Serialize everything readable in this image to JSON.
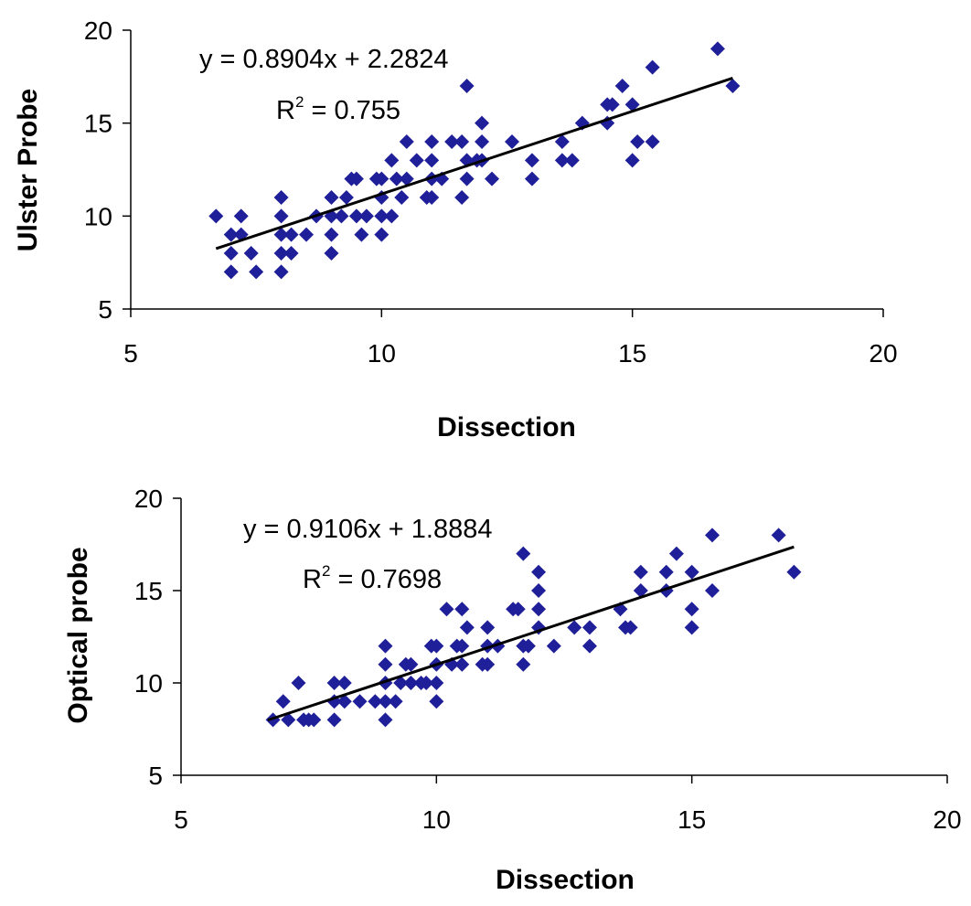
{
  "chart_data": [
    {
      "type": "scatter",
      "xlabel": "Dissection",
      "ylabel": "Ulster Probe",
      "xlim": [
        5,
        20
      ],
      "ylim": [
        5,
        20
      ],
      "xticks": [
        "5",
        "10",
        "15",
        "20"
      ],
      "yticks": [
        "5",
        "10",
        "15",
        "20"
      ],
      "marker": "diamond",
      "marker_color": "#1F1F99",
      "grid": false,
      "legend": "none",
      "trendline": {
        "slope": 0.8904,
        "intercept": 2.2824,
        "x_range": [
          6.7,
          17.0
        ],
        "equation": "y = 0.8904x + 2.2824",
        "r2_prefix": "R",
        "r2_sup": "2",
        "r2_value": " = 0.755"
      },
      "points": [
        [
          6.7,
          10
        ],
        [
          7.0,
          9
        ],
        [
          7.0,
          8
        ],
        [
          7.0,
          7
        ],
        [
          7.2,
          10
        ],
        [
          7.2,
          9
        ],
        [
          7.4,
          8
        ],
        [
          7.5,
          7
        ],
        [
          8.0,
          11
        ],
        [
          8.0,
          10
        ],
        [
          8.0,
          9
        ],
        [
          8.0,
          8
        ],
        [
          8.0,
          7
        ],
        [
          8.2,
          9
        ],
        [
          8.2,
          8
        ],
        [
          8.5,
          9
        ],
        [
          8.7,
          10
        ],
        [
          9.0,
          11
        ],
        [
          9.0,
          10
        ],
        [
          9.0,
          9
        ],
        [
          9.0,
          8
        ],
        [
          9.2,
          10
        ],
        [
          9.3,
          11
        ],
        [
          9.4,
          12
        ],
        [
          9.5,
          12
        ],
        [
          9.5,
          10
        ],
        [
          9.6,
          9
        ],
        [
          9.7,
          10
        ],
        [
          9.9,
          12
        ],
        [
          10.0,
          12
        ],
        [
          10.0,
          11
        ],
        [
          10.0,
          10
        ],
        [
          10.0,
          9
        ],
        [
          10.2,
          13
        ],
        [
          10.2,
          10
        ],
        [
          10.3,
          12
        ],
        [
          10.4,
          11
        ],
        [
          10.5,
          14
        ],
        [
          10.5,
          12
        ],
        [
          10.7,
          13
        ],
        [
          10.9,
          11
        ],
        [
          11.0,
          14
        ],
        [
          11.0,
          13
        ],
        [
          11.0,
          12
        ],
        [
          11.0,
          11
        ],
        [
          11.2,
          12
        ],
        [
          11.4,
          14
        ],
        [
          11.6,
          14
        ],
        [
          11.6,
          11
        ],
        [
          11.7,
          17
        ],
        [
          11.7,
          13
        ],
        [
          11.7,
          12
        ],
        [
          11.9,
          13
        ],
        [
          12.0,
          15
        ],
        [
          12.0,
          14
        ],
        [
          12.0,
          13
        ],
        [
          12.2,
          12
        ],
        [
          12.6,
          14
        ],
        [
          13.0,
          13
        ],
        [
          13.0,
          12
        ],
        [
          13.6,
          14
        ],
        [
          13.6,
          13
        ],
        [
          13.8,
          13
        ],
        [
          14.0,
          15
        ],
        [
          14.5,
          16
        ],
        [
          14.5,
          15
        ],
        [
          14.6,
          16
        ],
        [
          14.8,
          17
        ],
        [
          15.0,
          16
        ],
        [
          15.0,
          13
        ],
        [
          15.1,
          14
        ],
        [
          15.4,
          18
        ],
        [
          15.4,
          14
        ],
        [
          16.7,
          19
        ],
        [
          17.0,
          17
        ]
      ]
    },
    {
      "type": "scatter",
      "xlabel": "Dissection",
      "ylabel": "Optical probe",
      "xlim": [
        5,
        20
      ],
      "ylim": [
        5,
        20
      ],
      "xticks": [
        "5",
        "10",
        "15",
        "20"
      ],
      "yticks": [
        "5",
        "10",
        "15",
        "20"
      ],
      "marker": "diamond",
      "marker_color": "#1F1F99",
      "grid": false,
      "legend": "none",
      "trendline": {
        "slope": 0.9106,
        "intercept": 1.8884,
        "x_range": [
          6.7,
          17.0
        ],
        "equation": "y = 0.9106x + 1.8884",
        "r2_prefix": "R",
        "r2_sup": "2",
        "r2_value": " = 0.7698"
      },
      "points": [
        [
          6.8,
          8
        ],
        [
          7.0,
          9
        ],
        [
          7.1,
          8
        ],
        [
          7.3,
          10
        ],
        [
          7.4,
          8
        ],
        [
          7.5,
          8
        ],
        [
          7.6,
          8
        ],
        [
          8.0,
          10
        ],
        [
          8.0,
          9
        ],
        [
          8.0,
          8
        ],
        [
          8.2,
          10
        ],
        [
          8.2,
          9
        ],
        [
          8.5,
          9
        ],
        [
          8.8,
          9
        ],
        [
          9.0,
          12
        ],
        [
          9.0,
          11
        ],
        [
          9.0,
          10
        ],
        [
          9.0,
          9
        ],
        [
          9.0,
          8
        ],
        [
          9.2,
          9
        ],
        [
          9.3,
          10
        ],
        [
          9.4,
          11
        ],
        [
          9.5,
          11
        ],
        [
          9.5,
          10
        ],
        [
          9.7,
          10
        ],
        [
          9.8,
          10
        ],
        [
          9.9,
          12
        ],
        [
          10.0,
          12
        ],
        [
          10.0,
          11
        ],
        [
          10.0,
          10
        ],
        [
          10.0,
          9
        ],
        [
          10.2,
          14
        ],
        [
          10.3,
          11
        ],
        [
          10.4,
          12
        ],
        [
          10.5,
          14
        ],
        [
          10.5,
          12
        ],
        [
          10.5,
          11
        ],
        [
          10.6,
          13
        ],
        [
          10.9,
          11
        ],
        [
          11.0,
          13
        ],
        [
          11.0,
          12
        ],
        [
          11.0,
          11
        ],
        [
          11.2,
          12
        ],
        [
          11.5,
          14
        ],
        [
          11.6,
          14
        ],
        [
          11.7,
          17
        ],
        [
          11.7,
          12
        ],
        [
          11.7,
          11
        ],
        [
          11.8,
          12
        ],
        [
          12.0,
          16
        ],
        [
          12.0,
          15
        ],
        [
          12.0,
          14
        ],
        [
          12.0,
          13
        ],
        [
          12.3,
          12
        ],
        [
          12.7,
          13
        ],
        [
          13.0,
          13
        ],
        [
          13.0,
          12
        ],
        [
          13.6,
          14
        ],
        [
          13.7,
          13
        ],
        [
          13.8,
          13
        ],
        [
          14.0,
          16
        ],
        [
          14.0,
          15
        ],
        [
          14.5,
          16
        ],
        [
          14.5,
          15
        ],
        [
          14.7,
          17
        ],
        [
          15.0,
          16
        ],
        [
          15.0,
          14
        ],
        [
          15.0,
          13
        ],
        [
          15.4,
          18
        ],
        [
          15.4,
          15
        ],
        [
          16.7,
          18
        ],
        [
          17.0,
          16
        ]
      ]
    }
  ]
}
